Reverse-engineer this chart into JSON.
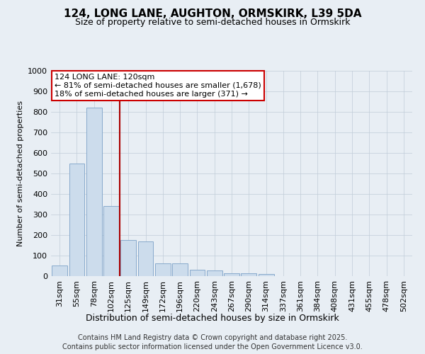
{
  "title1": "124, LONG LANE, AUGHTON, ORMSKIRK, L39 5DA",
  "title2": "Size of property relative to semi-detached houses in Ormskirk",
  "xlabel": "Distribution of semi-detached houses by size in Ormskirk",
  "ylabel": "Number of semi-detached properties",
  "categories": [
    "31sqm",
    "55sqm",
    "78sqm",
    "102sqm",
    "125sqm",
    "149sqm",
    "172sqm",
    "196sqm",
    "220sqm",
    "243sqm",
    "267sqm",
    "290sqm",
    "314sqm",
    "337sqm",
    "361sqm",
    "384sqm",
    "408sqm",
    "431sqm",
    "455sqm",
    "478sqm",
    "502sqm"
  ],
  "values": [
    52,
    550,
    820,
    340,
    175,
    170,
    63,
    63,
    32,
    28,
    15,
    13,
    10,
    0,
    0,
    0,
    0,
    0,
    0,
    0,
    0
  ],
  "bar_color": "#ccdcec",
  "bar_edge_color": "#88aacc",
  "vline_x": 3.5,
  "vline_color": "#aa0000",
  "annotation_line1": "124 LONG LANE: 120sqm",
  "annotation_line2": "← 81% of semi-detached houses are smaller (1,678)",
  "annotation_line3": "18% of semi-detached houses are larger (371) →",
  "annotation_box_color": "#cc0000",
  "ylim": [
    0,
    1000
  ],
  "yticks": [
    0,
    100,
    200,
    300,
    400,
    500,
    600,
    700,
    800,
    900,
    1000
  ],
  "footer_line1": "Contains HM Land Registry data © Crown copyright and database right 2025.",
  "footer_line2": "Contains public sector information licensed under the Open Government Licence v3.0.",
  "bg_color": "#e8eef4",
  "plot_bg_color": "#e8eef4",
  "grid_color": "#c0ccd8",
  "title1_fontsize": 11,
  "title2_fontsize": 9,
  "tick_fontsize": 8,
  "ylabel_fontsize": 8,
  "xlabel_fontsize": 9,
  "footer_fontsize": 7
}
